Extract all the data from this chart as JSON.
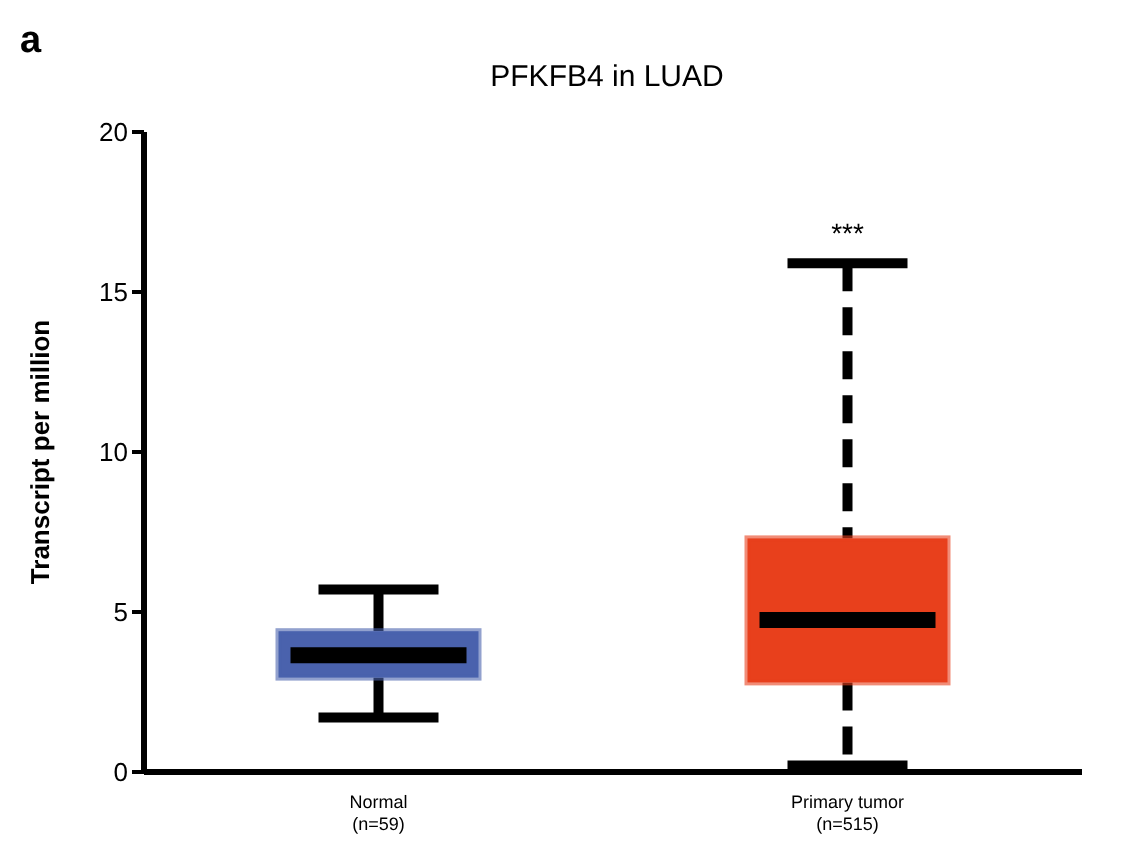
{
  "chart_data": {
    "type": "box",
    "title": "PFKFB4 in LUAD",
    "ylabel": "Transcript per million",
    "categories": [
      "Normal\n(n=59)",
      "Primary tumor\n(n=515)"
    ],
    "series": [
      {
        "color": "#4a62ad",
        "line_style": "solid",
        "boxes": [
          {
            "low": 1.7,
            "q1": 2.95,
            "median": 3.65,
            "q3": 4.4,
            "high": 5.7
          },
          null
        ]
      },
      {
        "color": "#e8401c",
        "line_style": "dashed",
        "boxes": [
          null,
          {
            "low": 0.2,
            "q1": 2.8,
            "median": 4.75,
            "q3": 7.3,
            "high": 15.9
          }
        ]
      }
    ],
    "ylim": [
      0,
      20
    ],
    "yticks": [
      0,
      5,
      10,
      15,
      20
    ],
    "grid": false,
    "annotations": [
      "a",
      "***"
    ]
  }
}
